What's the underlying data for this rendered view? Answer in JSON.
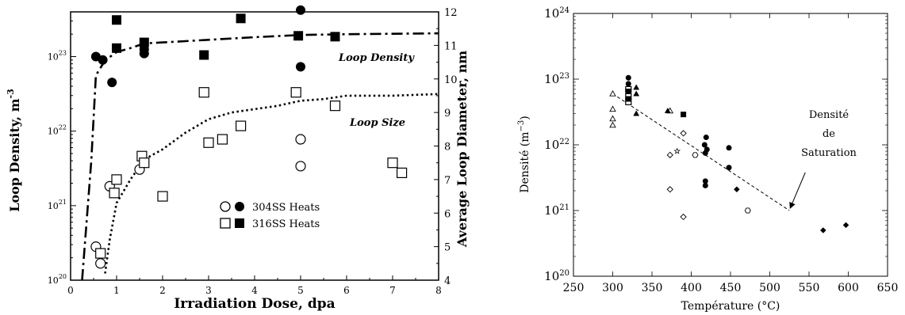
{
  "chart_data": [
    {
      "type": "scatter",
      "xlabel": "Irradiation Dose, dpa",
      "ylabel_left": "Loop Density, m",
      "ylabel_left_exp": "-3",
      "ylabel_right": "Average Loop Diameter, nm",
      "xlim": [
        0,
        8
      ],
      "ylim_left_log10": [
        20,
        23.6
      ],
      "ylim_right": [
        4,
        12
      ],
      "x_ticks": [
        "0",
        "1",
        "2",
        "3",
        "4",
        "5",
        "6",
        "7",
        "8"
      ],
      "y_left_ticks": [
        {
          "base": "10",
          "exp": "20"
        },
        {
          "base": "10",
          "exp": "21"
        },
        {
          "base": "10",
          "exp": "22"
        },
        {
          "base": "10",
          "exp": "23"
        }
      ],
      "y_right_ticks": [
        "4",
        "5",
        "6",
        "7",
        "8",
        "9",
        "10",
        "11",
        "12"
      ],
      "annotations": {
        "loop_density": "Loop Density",
        "loop_size": "Loop Size"
      },
      "legend": {
        "row1": {
          "label": "304SS  Heats"
        },
        "row2": {
          "label": "316SS  Heats"
        }
      },
      "series": [
        {
          "name": "304SS Heats",
          "variant": "density",
          "marker": "circle-filled",
          "axis": "left",
          "points": [
            [
              0.55,
              1e+23
            ],
            [
              0.7,
              9e+22
            ],
            [
              0.9,
              4.5e+22
            ],
            [
              1.6,
              1.1e+23
            ],
            [
              1.6,
              1.25e+23
            ],
            [
              5.0,
              7.3e+22
            ],
            [
              5.0,
              4.2e+23
            ]
          ]
        },
        {
          "name": "316SS Heats",
          "variant": "density",
          "marker": "square-filled",
          "axis": "left",
          "points": [
            [
              1.0,
              3.1e+23
            ],
            [
              1.0,
              1.3e+23
            ],
            [
              1.6,
              1.55e+23
            ],
            [
              2.9,
              1.05e+23
            ],
            [
              3.7,
              3.25e+23
            ],
            [
              4.95,
              1.9e+23
            ],
            [
              5.75,
              1.85e+23
            ]
          ]
        },
        {
          "name": "304SS Heats",
          "variant": "size",
          "marker": "circle-open",
          "axis": "right",
          "points": [
            [
              0.55,
              5.0
            ],
            [
              0.65,
              4.5
            ],
            [
              0.85,
              6.8
            ],
            [
              1.5,
              7.3
            ],
            [
              5.0,
              7.4
            ],
            [
              5.0,
              8.2
            ]
          ]
        },
        {
          "name": "316SS Heats",
          "variant": "size",
          "marker": "square-open",
          "axis": "right",
          "points": [
            [
              0.65,
              4.8
            ],
            [
              0.95,
              6.6
            ],
            [
              1.0,
              7.0
            ],
            [
              1.55,
              7.7
            ],
            [
              1.6,
              7.5
            ],
            [
              2.0,
              6.5
            ],
            [
              2.9,
              9.6
            ],
            [
              3.0,
              8.1
            ],
            [
              3.3,
              8.2
            ],
            [
              3.7,
              8.6
            ],
            [
              4.9,
              9.6
            ],
            [
              5.75,
              9.2
            ],
            [
              7.0,
              7.5
            ],
            [
              7.2,
              7.2
            ]
          ]
        }
      ],
      "fits": [
        {
          "name": "Loop Density",
          "style": "dash-dot",
          "axis": "left",
          "points": [
            [
              0.25,
              1e+20
            ],
            [
              0.35,
              6.3e+20
            ],
            [
              0.45,
              4e+21
            ],
            [
              0.55,
              5.6e+22
            ],
            [
              0.75,
              8.9e+22
            ],
            [
              1.0,
              1.15e+23
            ],
            [
              1.3,
              1.3e+23
            ],
            [
              1.6,
              1.5e+23
            ],
            [
              2.0,
              1.55e+23
            ],
            [
              3.0,
              1.68e+23
            ],
            [
              4.0,
              1.82e+23
            ],
            [
              5.0,
              1.95e+23
            ],
            [
              6.0,
              2e+23
            ],
            [
              8.0,
              2.05e+23
            ]
          ]
        },
        {
          "name": "Loop Size",
          "style": "dotted",
          "axis": "right",
          "points": [
            [
              0.75,
              4.2
            ],
            [
              0.85,
              5.2
            ],
            [
              1.0,
              6.3
            ],
            [
              1.3,
              7.0
            ],
            [
              1.6,
              7.6
            ],
            [
              2.0,
              7.9
            ],
            [
              2.5,
              8.4
            ],
            [
              3.0,
              8.8
            ],
            [
              3.5,
              9.0
            ],
            [
              4.0,
              9.1
            ],
            [
              4.5,
              9.2
            ],
            [
              5.0,
              9.35
            ],
            [
              5.5,
              9.4
            ],
            [
              6.0,
              9.5
            ],
            [
              7.0,
              9.5
            ],
            [
              8.0,
              9.55
            ]
          ]
        }
      ]
    },
    {
      "type": "scatter",
      "xlabel": "Température (°C)",
      "ylabel": "Densité (m",
      "ylabel_exp": "−3",
      "ylabel_close": ")",
      "xlim": [
        250,
        650
      ],
      "ylim_log10": [
        20,
        24
      ],
      "x_ticks": [
        "250",
        "300",
        "350",
        "400",
        "450",
        "500",
        "550",
        "600",
        "650"
      ],
      "y_ticks": [
        {
          "base": "10",
          "exp": "20"
        },
        {
          "base": "10",
          "exp": "21"
        },
        {
          "base": "10",
          "exp": "22"
        },
        {
          "base": "10",
          "exp": "23"
        },
        {
          "base": "10",
          "exp": "24"
        }
      ],
      "annotation": {
        "line1": "Densité",
        "line2": "de",
        "line3": "Saturation"
      },
      "saturation_line": [
        [
          300,
          6e+22
        ],
        [
          525,
          1e+21
        ]
      ],
      "series": [
        {
          "marker": "triangle-open",
          "points": [
            [
              300,
              6e+22
            ],
            [
              300,
              3.5e+22
            ],
            [
              300,
              2.5e+22
            ],
            [
              300,
              2e+22
            ],
            [
              373,
              3.3e+22
            ]
          ]
        },
        {
          "marker": "triangle-filled",
          "points": [
            [
              320,
              5.5e+22
            ],
            [
              330,
              7.5e+22
            ],
            [
              330,
              6e+22
            ],
            [
              330,
              3e+22
            ],
            [
              370,
              3.3e+22
            ]
          ]
        },
        {
          "marker": "circle-filled",
          "points": [
            [
              320,
              1.05e+23
            ],
            [
              320,
              8.5e+22
            ],
            [
              320,
              6.5e+22
            ],
            [
              417,
              1e+22
            ],
            [
              419,
              1.3e+22
            ],
            [
              420,
              8.5e+21
            ],
            [
              418,
              7.5e+21
            ],
            [
              448,
              9e+21
            ],
            [
              448,
              4.5e+21
            ],
            [
              418,
              2.8e+21
            ],
            [
              418,
              2.4e+21
            ]
          ]
        },
        {
          "marker": "square-open",
          "points": [
            [
              320,
              7e+22
            ],
            [
              320,
              5.5e+22
            ],
            [
              320,
              4.5e+22
            ]
          ]
        },
        {
          "marker": "square-filled",
          "points": [
            [
              320,
              6.5e+22
            ],
            [
              320,
              5e+22
            ],
            [
              390,
              2.9e+22
            ]
          ]
        },
        {
          "marker": "diamond-open",
          "points": [
            [
              390,
              1.5e+22
            ],
            [
              373,
              7e+21
            ],
            [
              373,
              2.1e+21
            ],
            [
              390,
              8e+20
            ]
          ]
        },
        {
          "marker": "diamond-filled",
          "points": [
            [
              458,
              2.1e+21
            ],
            [
              568,
              5e+20
            ],
            [
              597,
              6e+20
            ]
          ]
        },
        {
          "marker": "hexagon-open",
          "points": [
            [
              405,
              7e+21
            ],
            [
              472,
              1e+21
            ]
          ]
        },
        {
          "marker": "star",
          "points": [
            [
              382,
              8e+21
            ]
          ]
        }
      ]
    }
  ]
}
